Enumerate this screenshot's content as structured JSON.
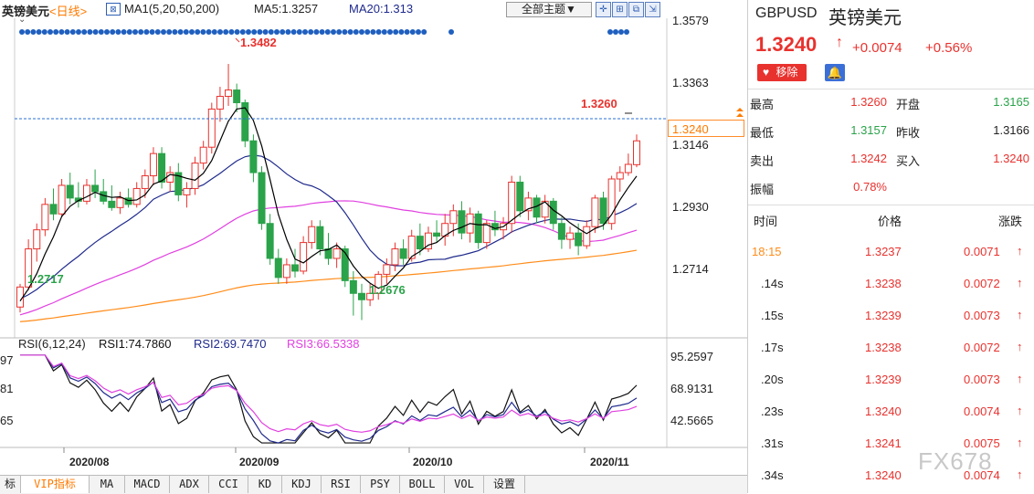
{
  "header": {
    "name": "英镑美元",
    "period": "<日线>",
    "ma_label": "MA1(5,20,50,200)",
    "ma5": "MA5:1.3257",
    "ma20": "MA20:1.313",
    "theme_button": "全部主题▼"
  },
  "y_axis_labels": [
    "1.3579",
    "1.3363",
    "1.3146",
    "1.2930",
    "1.2714"
  ],
  "last_price_tag": "1.3240",
  "annotations": {
    "high": "1.3482",
    "low": "1.2676",
    "start": "1.2717",
    "recent_high": "1.3260"
  },
  "rsi": {
    "label": "RSI(6,12,24)",
    "rsi1": "RSI1:74.7860",
    "rsi2": "RSI2:69.7470",
    "rsi3": "RSI3:66.5338",
    "axis": [
      "95.2597",
      "68.9131",
      "42.5665"
    ],
    "left_axis": [
      "97",
      "81",
      "65"
    ]
  },
  "x_axis_labels": [
    "2020/08",
    "2020/09",
    "2020/10",
    "2020/11"
  ],
  "toolbar": [
    "标",
    "VIP指标",
    "MA",
    "MACD",
    "ADX",
    "CCI",
    "KD",
    "KDJ",
    "RSI",
    "PSY",
    "BOLL",
    "VOL",
    "设置"
  ],
  "quote": {
    "symbol": "GBPUSD",
    "name": "英镑美元",
    "price": "1.3240",
    "arrow": "↑",
    "change": "+0.0074",
    "change_pct": "+0.56%",
    "remove_label": "移除",
    "stats": [
      {
        "label": "最高",
        "value": "1.3260",
        "label2": "开盘",
        "value2": "1.3165"
      },
      {
        "label": "最低",
        "value": "1.3157",
        "label2": "昨收",
        "value2": "1.3166"
      },
      {
        "label": "卖出",
        "value": "1.3242",
        "label2": "买入",
        "value2": "1.3240"
      },
      {
        "label": "振幅",
        "value": "0.78%",
        "label2": "",
        "value2": ""
      }
    ],
    "ticks_header": [
      "时间",
      "价格",
      "涨跌"
    ],
    "ticks": [
      {
        "time": "18:15",
        "price": "1.3237",
        "chg": "0.0071"
      },
      {
        "time": ".14s",
        "price": "1.3238",
        "chg": "0.0072"
      },
      {
        "time": ".15s",
        "price": "1.3239",
        "chg": "0.0073"
      },
      {
        "time": ".17s",
        "price": "1.3238",
        "chg": "0.0072"
      },
      {
        "time": ".20s",
        "price": "1.3239",
        "chg": "0.0073"
      },
      {
        "time": ".23s",
        "price": "1.3240",
        "chg": "0.0074"
      },
      {
        "time": ".31s",
        "price": "1.3241",
        "chg": "0.0075"
      },
      {
        "time": ".34s",
        "price": "1.3240",
        "chg": "0.0074"
      }
    ]
  },
  "watermark": "FX678",
  "colors": {
    "up": "#e8322e",
    "down": "#2aa34a",
    "ma5": "#000000",
    "ma20": "#1f2a8c",
    "ma50": "#e040e0",
    "ma200": "#ff8c1a",
    "accent": "#ff7a00"
  },
  "chart_data": {
    "type": "candlestick",
    "title": "英镑美元 <日线>",
    "ylim": [
      1.262,
      1.362
    ],
    "candles": [
      [
        1.2717,
        1.279,
        1.27,
        1.278
      ],
      [
        1.278,
        1.293,
        1.277,
        1.29
      ],
      [
        1.29,
        1.298,
        1.286,
        1.296
      ],
      [
        1.296,
        1.306,
        1.294,
        1.304
      ],
      [
        1.304,
        1.309,
        1.299,
        1.301
      ],
      [
        1.301,
        1.312,
        1.3,
        1.31
      ],
      [
        1.31,
        1.314,
        1.304,
        1.306
      ],
      [
        1.306,
        1.311,
        1.303,
        1.305
      ],
      [
        1.305,
        1.312,
        1.304,
        1.31
      ],
      [
        1.31,
        1.315,
        1.306,
        1.308
      ],
      [
        1.308,
        1.312,
        1.304,
        1.305
      ],
      [
        1.305,
        1.31,
        1.302,
        1.303
      ],
      [
        1.303,
        1.308,
        1.301,
        1.306
      ],
      [
        1.306,
        1.309,
        1.303,
        1.304
      ],
      [
        1.304,
        1.311,
        1.303,
        1.309
      ],
      [
        1.309,
        1.315,
        1.306,
        1.313
      ],
      [
        1.313,
        1.322,
        1.31,
        1.32
      ],
      [
        1.32,
        1.322,
        1.309,
        1.311
      ],
      [
        1.311,
        1.316,
        1.308,
        1.314
      ],
      [
        1.314,
        1.317,
        1.305,
        1.307
      ],
      [
        1.307,
        1.311,
        1.303,
        1.309
      ],
      [
        1.309,
        1.319,
        1.307,
        1.317
      ],
      [
        1.317,
        1.324,
        1.315,
        1.322
      ],
      [
        1.322,
        1.336,
        1.32,
        1.334
      ],
      [
        1.334,
        1.341,
        1.33,
        1.338
      ],
      [
        1.338,
        1.3482,
        1.335,
        1.34
      ],
      [
        1.34,
        1.342,
        1.333,
        1.336
      ],
      [
        1.336,
        1.337,
        1.322,
        1.324
      ],
      [
        1.324,
        1.326,
        1.311,
        1.314
      ],
      [
        1.314,
        1.316,
        1.296,
        1.298
      ],
      [
        1.298,
        1.301,
        1.285,
        1.287
      ],
      [
        1.287,
        1.29,
        1.279,
        1.281
      ],
      [
        1.281,
        1.287,
        1.279,
        1.285
      ],
      [
        1.285,
        1.29,
        1.281,
        1.283
      ],
      [
        1.283,
        1.294,
        1.282,
        1.292
      ],
      [
        1.292,
        1.299,
        1.29,
        1.297
      ],
      [
        1.297,
        1.299,
        1.288,
        1.29
      ],
      [
        1.29,
        1.295,
        1.285,
        1.287
      ],
      [
        1.287,
        1.292,
        1.284,
        1.29
      ],
      [
        1.29,
        1.291,
        1.278,
        1.28
      ],
      [
        1.28,
        1.283,
        1.269,
        1.276
      ],
      [
        1.276,
        1.279,
        1.2676,
        1.274
      ],
      [
        1.274,
        1.279,
        1.272,
        1.276
      ],
      [
        1.276,
        1.283,
        1.274,
        1.282
      ],
      [
        1.282,
        1.287,
        1.279,
        1.285
      ],
      [
        1.285,
        1.292,
        1.283,
        1.29
      ],
      [
        1.29,
        1.293,
        1.285,
        1.287
      ],
      [
        1.287,
        1.296,
        1.286,
        1.294
      ],
      [
        1.294,
        1.298,
        1.288,
        1.29
      ],
      [
        1.29,
        1.297,
        1.289,
        1.295
      ],
      [
        1.295,
        1.299,
        1.292,
        1.294
      ],
      [
        1.294,
        1.301,
        1.291,
        1.298
      ],
      [
        1.298,
        1.304,
        1.294,
        1.302
      ],
      [
        1.302,
        1.305,
        1.293,
        1.295
      ],
      [
        1.295,
        1.303,
        1.292,
        1.301
      ],
      [
        1.301,
        1.302,
        1.29,
        1.292
      ],
      [
        1.292,
        1.299,
        1.29,
        1.298
      ],
      [
        1.298,
        1.302,
        1.294,
        1.296
      ],
      [
        1.296,
        1.3,
        1.293,
        1.298
      ],
      [
        1.298,
        1.313,
        1.295,
        1.311
      ],
      [
        1.311,
        1.313,
        1.3,
        1.302
      ],
      [
        1.302,
        1.308,
        1.299,
        1.306
      ],
      [
        1.306,
        1.307,
        1.298,
        1.3
      ],
      [
        1.3,
        1.307,
        1.298,
        1.305
      ],
      [
        1.305,
        1.306,
        1.296,
        1.298
      ],
      [
        1.298,
        1.3,
        1.29,
        1.293
      ],
      [
        1.293,
        1.297,
        1.29,
        1.295
      ],
      [
        1.295,
        1.298,
        1.288,
        1.291
      ],
      [
        1.291,
        1.299,
        1.29,
        1.297
      ],
      [
        1.297,
        1.307,
        1.295,
        1.306
      ],
      [
        1.306,
        1.308,
        1.296,
        1.298
      ],
      [
        1.298,
        1.313,
        1.296,
        1.312
      ],
      [
        1.312,
        1.316,
        1.308,
        1.314
      ],
      [
        1.314,
        1.32,
        1.313,
        1.3166
      ],
      [
        1.3165,
        1.326,
        1.3157,
        1.324
      ]
    ],
    "rsi_ylim": [
      30,
      100
    ]
  }
}
